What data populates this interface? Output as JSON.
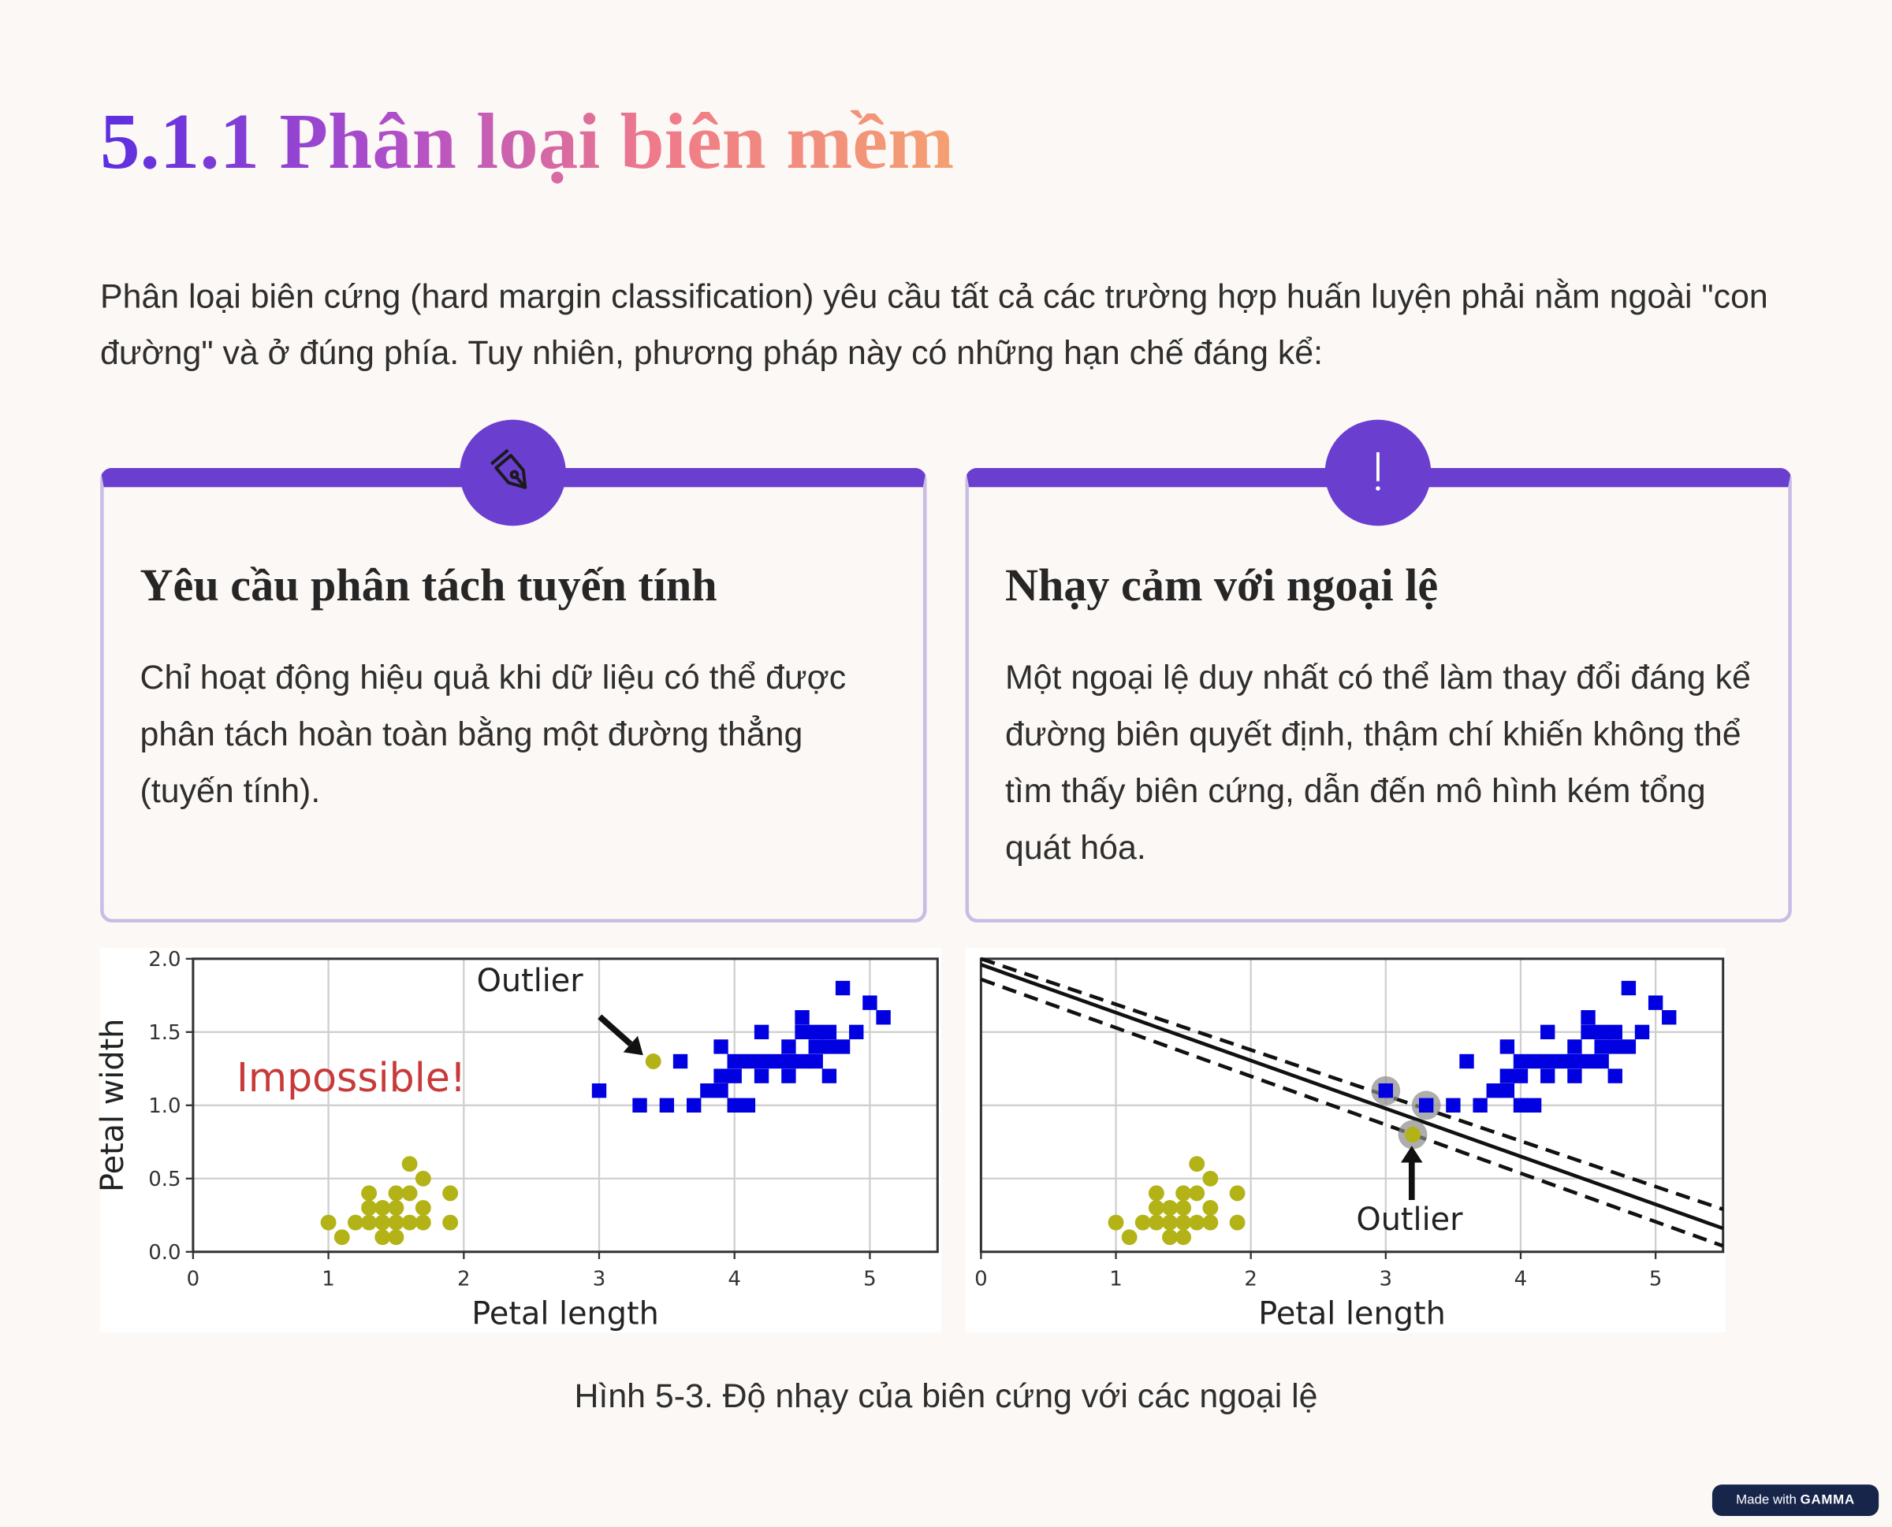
{
  "header": {
    "title": "5.1.1 Phân loại biên mềm"
  },
  "intro": "Phân loại biên cứng (hard margin classification) yêu cầu tất cả các trường hợp huấn luyện phải nằm ngoài \"con đường\" và ở đúng phía. Tuy nhiên, phương pháp này có những hạn chế đáng kể:",
  "cards": [
    {
      "heading": "Yêu cầu phân tách tuyến tính",
      "body": "Chỉ hoạt động hiệu quả khi dữ liệu có thể được phân tách hoàn toàn bằng một đường thẳng (tuyến tính)."
    },
    {
      "heading": "Nhạy cảm với ngoại lệ",
      "body": "Một ngoại lệ duy nhất có thể làm thay đổi đáng kể đường biên quyết định, thậm chí khiến không thể tìm thấy biên cứng, dẫn đến mô hình kém tổng quát hóa."
    }
  ],
  "figure": {
    "charts": [
      {
        "type": "scatter",
        "xlabel": "Petal length",
        "ylabel": "Petal width",
        "xlim": [
          0,
          5.5
        ],
        "ylim": [
          0,
          2
        ],
        "xticks": [
          0,
          1,
          2,
          3,
          4,
          5
        ],
        "yticks": [
          {
            "value": 0,
            "label": "0.0"
          },
          0.5,
          {
            "value": 1,
            "label": "1.0"
          },
          1.5,
          {
            "value": 2,
            "label": "2.0"
          }
        ],
        "grid": true,
        "show_ytick_labels": true,
        "series": [
          {
            "marker": "circle",
            "color": "#b3b318",
            "x": [
              1.0,
              1.1,
              1.2,
              1.3,
              1.3,
              1.3,
              1.4,
              1.4,
              1.4,
              1.5,
              1.5,
              1.5,
              1.5,
              1.6,
              1.6,
              1.6,
              1.7,
              1.7,
              1.7,
              1.9,
              1.9
            ],
            "y": [
              0.2,
              0.1,
              0.2,
              0.2,
              0.3,
              0.4,
              0.1,
              0.2,
              0.3,
              0.1,
              0.2,
              0.3,
              0.4,
              0.2,
              0.4,
              0.6,
              0.2,
              0.3,
              0.5,
              0.2,
              0.4
            ]
          },
          {
            "marker": "square",
            "color": "#0000e0",
            "x": [
              3.0,
              3.3,
              3.5,
              3.6,
              3.7,
              3.8,
              3.9,
              3.9,
              3.9,
              4.0,
              4.0,
              4.0,
              4.1,
              4.1,
              4.2,
              4.2,
              4.2,
              4.3,
              4.4,
              4.4,
              4.4,
              4.5,
              4.5,
              4.5,
              4.6,
              4.6,
              4.6,
              4.7,
              4.7,
              4.7,
              4.8,
              4.8,
              4.9,
              5.0,
              5.1
            ],
            "y": [
              1.1,
              1.0,
              1.0,
              1.3,
              1.0,
              1.1,
              1.1,
              1.2,
              1.4,
              1.0,
              1.2,
              1.3,
              1.0,
              1.3,
              1.2,
              1.3,
              1.5,
              1.3,
              1.2,
              1.3,
              1.4,
              1.3,
              1.5,
              1.6,
              1.3,
              1.4,
              1.5,
              1.2,
              1.4,
              1.5,
              1.4,
              1.8,
              1.5,
              1.7,
              1.6
            ]
          },
          {
            "marker": "circle",
            "color": "#b3b318",
            "x": [
              3.4
            ],
            "y": [
              1.3
            ]
          }
        ],
        "annotations": [
          {
            "text": "Outlier",
            "color": "#222222"
          },
          {
            "text": "Impossible!",
            "color": "#c83a3a"
          }
        ]
      },
      {
        "type": "scatter",
        "xlabel": "Petal length",
        "xlim": [
          0,
          5.5
        ],
        "ylim": [
          0,
          2
        ],
        "xticks": [
          0,
          1,
          2,
          3,
          4,
          5
        ],
        "yticks": [
          0,
          0.5,
          1,
          1.5,
          2
        ],
        "grid": true,
        "show_ytick_labels": false,
        "support_vectors": {
          "color": "#8a8a8a",
          "x": [
            3.0,
            3.3,
            3.2
          ],
          "y": [
            1.1,
            1.0,
            0.8
          ]
        },
        "lines": [
          {
            "style": "solid",
            "color": "#111111",
            "x": [
              0,
              5.5
            ],
            "y": [
              1.96,
              0.16
            ]
          },
          {
            "style": "dashed",
            "color": "#111111",
            "x": [
              0,
              5.5
            ],
            "y": [
              2.0,
              0.29
            ]
          },
          {
            "style": "dashed",
            "color": "#111111",
            "x": [
              0,
              5.5
            ],
            "y": [
              1.86,
              0.04
            ]
          }
        ],
        "series": [
          {
            "marker": "circle",
            "color": "#b3b318",
            "x": [
              1.0,
              1.1,
              1.2,
              1.3,
              1.3,
              1.3,
              1.4,
              1.4,
              1.4,
              1.5,
              1.5,
              1.5,
              1.5,
              1.6,
              1.6,
              1.6,
              1.7,
              1.7,
              1.7,
              1.9,
              1.9
            ],
            "y": [
              0.2,
              0.1,
              0.2,
              0.2,
              0.3,
              0.4,
              0.1,
              0.2,
              0.3,
              0.1,
              0.2,
              0.3,
              0.4,
              0.2,
              0.4,
              0.6,
              0.2,
              0.3,
              0.5,
              0.2,
              0.4
            ]
          },
          {
            "marker": "square",
            "color": "#0000e0",
            "x": [
              3.0,
              3.3,
              3.5,
              3.6,
              3.7,
              3.8,
              3.9,
              3.9,
              3.9,
              4.0,
              4.0,
              4.0,
              4.1,
              4.1,
              4.2,
              4.2,
              4.2,
              4.3,
              4.4,
              4.4,
              4.4,
              4.5,
              4.5,
              4.5,
              4.6,
              4.6,
              4.6,
              4.7,
              4.7,
              4.7,
              4.8,
              4.8,
              4.9,
              5.0,
              5.1
            ],
            "y": [
              1.1,
              1.0,
              1.0,
              1.3,
              1.0,
              1.1,
              1.1,
              1.2,
              1.4,
              1.0,
              1.2,
              1.3,
              1.0,
              1.3,
              1.2,
              1.3,
              1.5,
              1.3,
              1.2,
              1.3,
              1.4,
              1.3,
              1.5,
              1.6,
              1.3,
              1.4,
              1.5,
              1.2,
              1.4,
              1.5,
              1.4,
              1.8,
              1.5,
              1.7,
              1.6
            ]
          },
          {
            "marker": "circle",
            "color": "#b3b318",
            "x": [
              3.2
            ],
            "y": [
              0.8
            ]
          }
        ],
        "annotations": [
          {
            "text": "Outlier",
            "color": "#222222"
          }
        ]
      }
    ],
    "caption": "Hình 5-3. Độ nhạy của biên cứng với các ngoại lệ"
  },
  "badge": {
    "text": "Made with",
    "brand": "GAMMA"
  }
}
